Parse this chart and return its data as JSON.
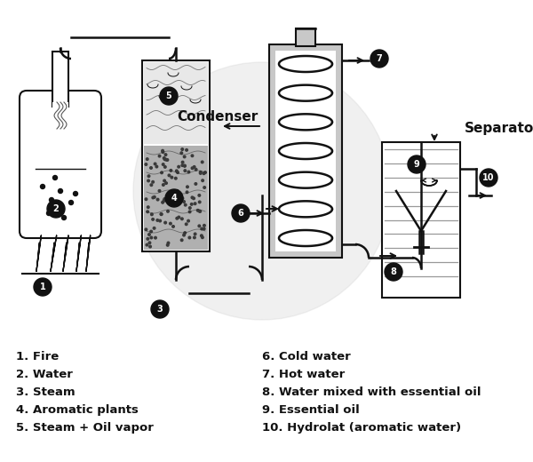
{
  "bg_color": "#ffffff",
  "legend_left": [
    "1. Fire",
    "2. Water",
    "3. Steam",
    "4. Aromatic plants",
    "5. Steam + Oil vapor"
  ],
  "legend_right": [
    "6. Cold water",
    "7. Hot water",
    "8. Water mixed with essential oil",
    "9. Essential oil",
    "10. Hydrolat (aromatic water)"
  ],
  "label_condenser": "Condenser",
  "label_separator": "Separator",
  "circle_bg": "#111111",
  "circle_fg": "#ffffff"
}
